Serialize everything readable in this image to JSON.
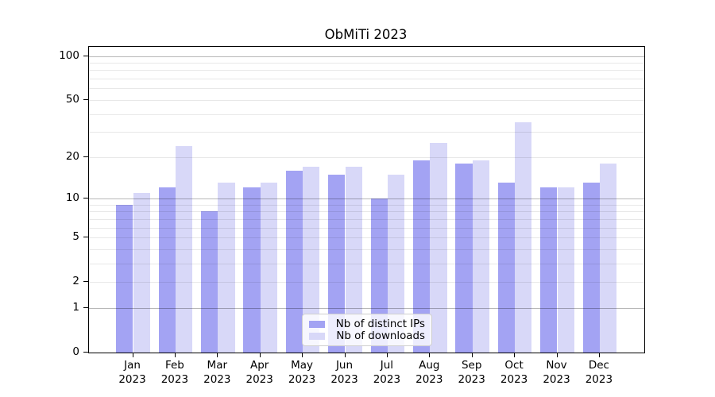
{
  "title": "ObMiTi 2023",
  "legend": {
    "items": [
      {
        "label": "Nb of distinct IPs",
        "color": "#a3a3f3"
      },
      {
        "label": "Nb of downloads",
        "color": "#d8d8f8"
      }
    ]
  },
  "chart_data": {
    "type": "bar",
    "title": "ObMiTi 2023",
    "scale": "log1p",
    "grid": true,
    "legend_position": "lower center",
    "categories": [
      "Jan",
      "Feb",
      "Mar",
      "Apr",
      "May",
      "Jun",
      "Jul",
      "Aug",
      "Sep",
      "Oct",
      "Nov",
      "Dec"
    ],
    "year_label": "2023",
    "series": [
      {
        "name": "Nb of distinct IPs",
        "color": "#a3a3f3",
        "values": [
          9,
          12,
          8,
          12,
          16,
          15,
          10,
          19,
          18,
          13,
          12,
          13
        ]
      },
      {
        "name": "Nb of downloads",
        "color": "#d8d8f8",
        "values": [
          11,
          24,
          13,
          13,
          17,
          17,
          15,
          25,
          19,
          35,
          12,
          18
        ]
      }
    ],
    "y_ticks": [
      0,
      1,
      2,
      5,
      10,
      20,
      50,
      100
    ],
    "y_major_gridlines": [
      1,
      10,
      100
    ],
    "y_minor_gridlines": [
      2,
      3,
      4,
      5,
      6,
      7,
      8,
      9,
      20,
      30,
      40,
      50,
      60,
      70,
      80,
      90
    ],
    "ylim": [
      0,
      116
    ],
    "xlabel": "",
    "ylabel": ""
  },
  "colors": {
    "background": "#ffffff",
    "axis": "#000000",
    "major_grid": "#b8b8b8",
    "minor_grid": "#e8e8e8",
    "bar_ips": "#a3a3f3",
    "bar_downloads": "#d8d8f8"
  }
}
